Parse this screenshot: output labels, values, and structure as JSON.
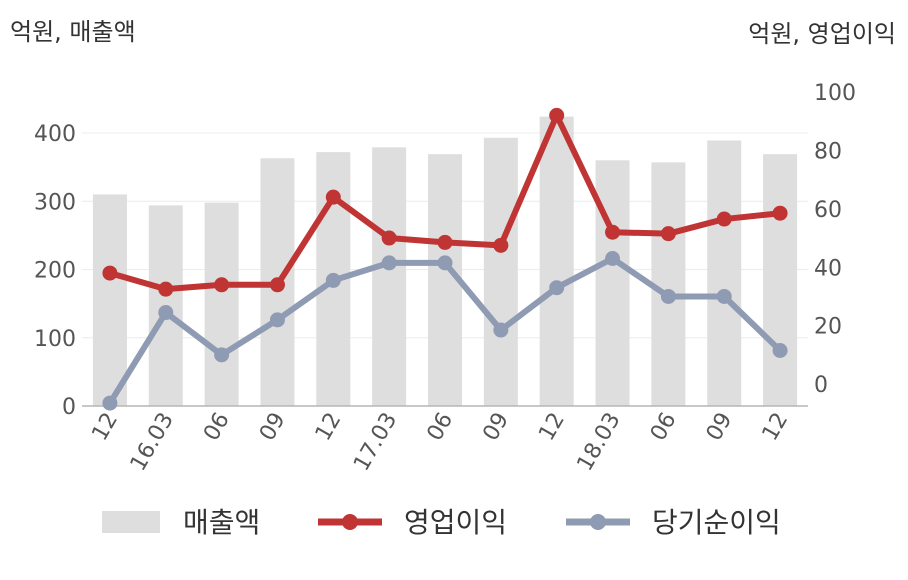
{
  "chart_data": {
    "type": "bar+line",
    "y_left_label": "억원, 매출액",
    "y_right_label": "억원, 영업이익",
    "categories": [
      "12",
      "16.03",
      "06",
      "09",
      "12",
      "17.03",
      "06",
      "09",
      "12",
      "18.03",
      "06",
      "09",
      "12"
    ],
    "y_left_ticks": [
      "0",
      "100",
      "200",
      "300",
      "400"
    ],
    "y_right_ticks": [
      "0",
      "20",
      "40",
      "60",
      "80",
      "100"
    ],
    "y_left_range": [
      0,
      400
    ],
    "y_right_range": [
      -7.5,
      100
    ],
    "grid": true,
    "legend_position": "bottom",
    "series": [
      {
        "name": "매출액",
        "kind": "bar",
        "axis": "left",
        "color": "#dedede",
        "values": [
          310,
          294,
          298,
          363,
          372,
          379,
          369,
          393,
          424,
          360,
          357,
          389,
          369
        ]
      },
      {
        "name": "영업이익",
        "kind": "line",
        "axis": "right",
        "color": "#c03434",
        "values": [
          38,
          32.5,
          34,
          34,
          64,
          50,
          48.5,
          47.5,
          92,
          52,
          51.5,
          56.5,
          58.5
        ]
      },
      {
        "name": "당기순이익",
        "kind": "line",
        "axis": "right",
        "color": "#8f9bb3",
        "values": [
          -6.5,
          24.5,
          10,
          22,
          35.5,
          41.5,
          41.5,
          18.5,
          33,
          43,
          30,
          30,
          11.5
        ]
      }
    ]
  }
}
